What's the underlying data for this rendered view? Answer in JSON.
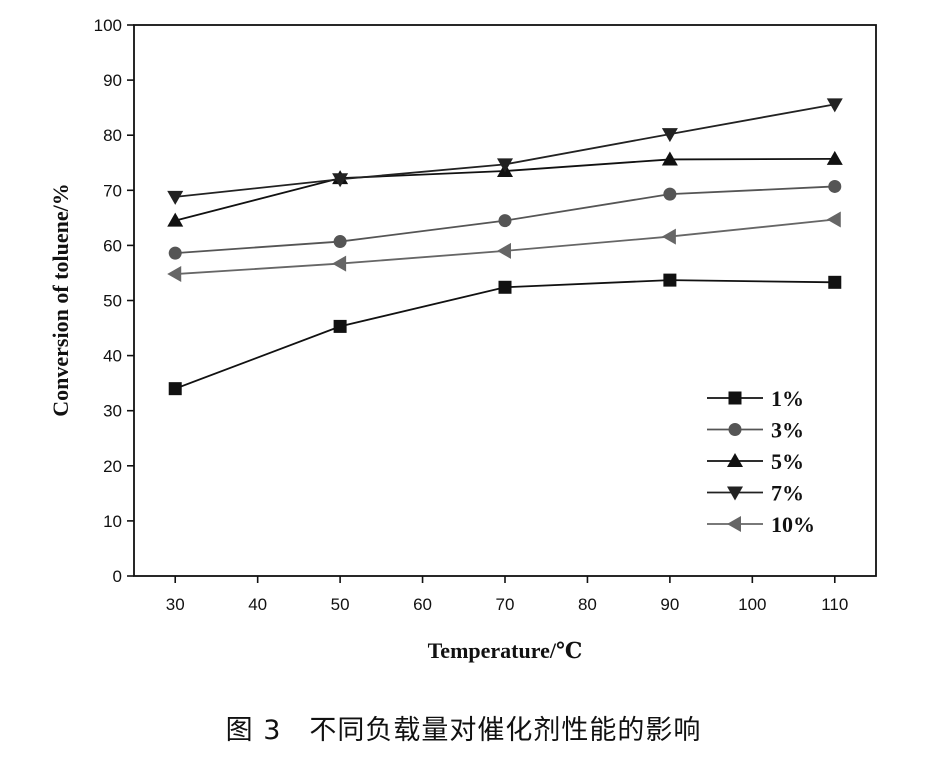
{
  "caption": "图 3　不同负载量对催化剂性能的影响",
  "chart_data": {
    "type": "line",
    "xlabel": "Temperature/℃",
    "ylabel": "Conversion of toluene/%",
    "x": [
      30,
      50,
      70,
      90,
      110
    ],
    "xticks": [
      30,
      40,
      50,
      60,
      70,
      80,
      90,
      100,
      110
    ],
    "yticks": [
      0,
      10,
      20,
      30,
      40,
      50,
      60,
      70,
      80,
      90,
      100
    ],
    "xlim": [
      25,
      115
    ],
    "ylim": [
      0,
      100
    ],
    "grid": false,
    "legend_position": "bottom-right",
    "series": [
      {
        "name": "1%",
        "marker": "square",
        "color": "#111111",
        "values": [
          34.0,
          45.3,
          52.4,
          53.7,
          53.3
        ]
      },
      {
        "name": "3%",
        "marker": "circle",
        "color": "#555555",
        "values": [
          58.6,
          60.7,
          64.5,
          69.3,
          70.7
        ]
      },
      {
        "name": "5%",
        "marker": "triangle-up",
        "color": "#111111",
        "values": [
          64.5,
          72.2,
          73.5,
          75.6,
          75.7
        ]
      },
      {
        "name": "7%",
        "marker": "triangle-down",
        "color": "#222222",
        "values": [
          68.8,
          72.0,
          74.7,
          80.2,
          85.6
        ]
      },
      {
        "name": "10%",
        "marker": "triangle-left",
        "color": "#666666",
        "values": [
          54.8,
          56.7,
          59.0,
          61.6,
          64.7
        ]
      }
    ]
  }
}
